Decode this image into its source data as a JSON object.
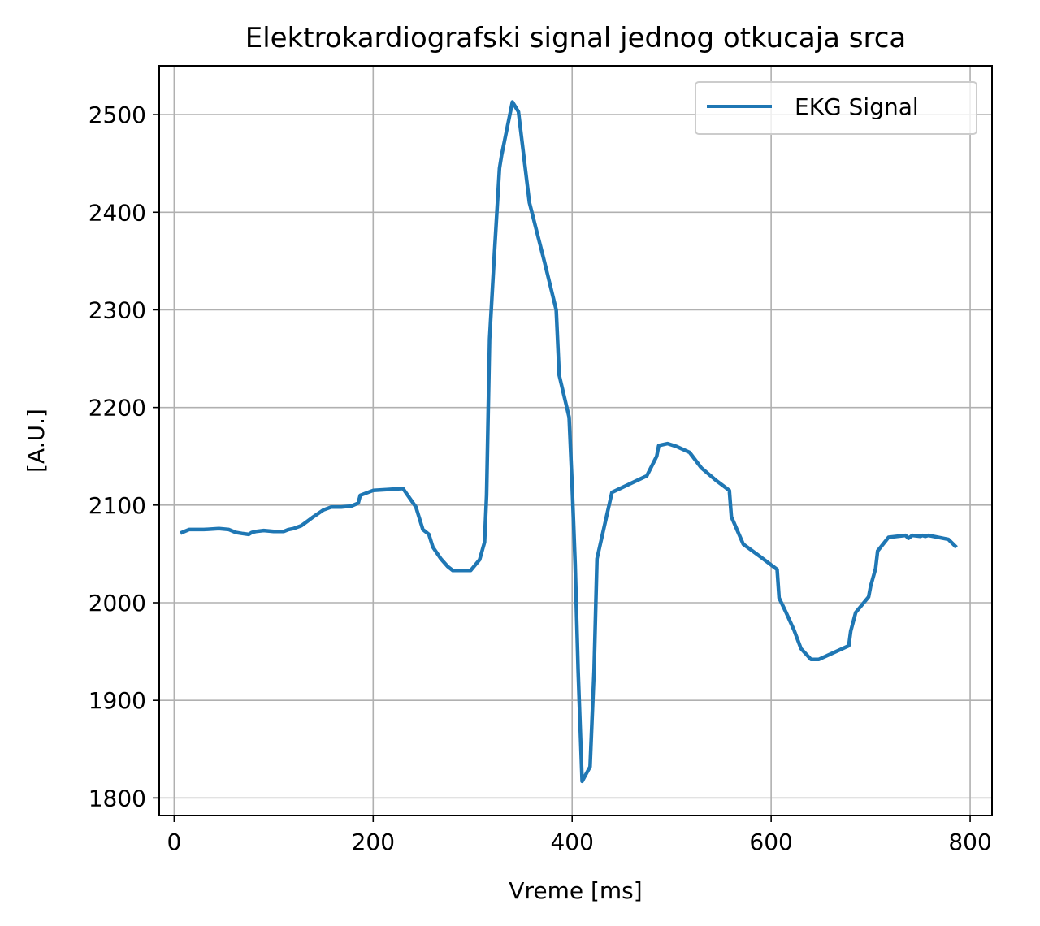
{
  "chart_data": {
    "type": "line",
    "title": "Elektrokardiografski signal jednog otkucaja srca",
    "xlabel": "Vreme [ms]",
    "ylabel": "[A.U.]",
    "xlim": [
      -15,
      822
    ],
    "ylim": [
      1782,
      2550
    ],
    "xticks": [
      0,
      200,
      400,
      600,
      800
    ],
    "yticks": [
      1800,
      1900,
      2000,
      2100,
      2200,
      2300,
      2400,
      2500
    ],
    "grid": true,
    "legend_position": "top-right",
    "series": [
      {
        "name": "EKG Signal",
        "color": "#1f77b4",
        "x": [
          8,
          15,
          30,
          45,
          55,
          62,
          68,
          75,
          78,
          82,
          90,
          100,
          110,
          115,
          120,
          128,
          140,
          150,
          158,
          168,
          178,
          185,
          187,
          200,
          215,
          230,
          243,
          250,
          256,
          260,
          268,
          275,
          280,
          298,
          307,
          312,
          314,
          317,
          322,
          327,
          329,
          340,
          346,
          357,
          372,
          384,
          387,
          397,
          400,
          403,
          406,
          410,
          418,
          422,
          425,
          440,
          475,
          485,
          487,
          496,
          505,
          518,
          530,
          545,
          558,
          560,
          572,
          588,
          606,
          608,
          615,
          623,
          630,
          640,
          648,
          678,
          680,
          685,
          698,
          700,
          705,
          707,
          718,
          735,
          738,
          742,
          750,
          752,
          755,
          758,
          778,
          785
        ],
        "y": [
          2072,
          2075,
          2075,
          2076,
          2075,
          2072,
          2071,
          2070,
          2072,
          2073,
          2074,
          2073,
          2073,
          2075,
          2076,
          2079,
          2088,
          2095,
          2098,
          2098,
          2099,
          2102,
          2110,
          2115,
          2116,
          2117,
          2098,
          2075,
          2070,
          2057,
          2045,
          2037,
          2033,
          2033,
          2044,
          2062,
          2110,
          2270,
          2360,
          2445,
          2458,
          2513,
          2503,
          2410,
          2350,
          2300,
          2233,
          2190,
          2120,
          2040,
          1930,
          1817,
          1832,
          1930,
          2045,
          2113,
          2130,
          2150,
          2161,
          2163,
          2160,
          2154,
          2138,
          2125,
          2115,
          2088,
          2060,
          2048,
          2034,
          2005,
          1990,
          1972,
          1953,
          1942,
          1942,
          1956,
          1971,
          1990,
          2006,
          2017,
          2035,
          2053,
          2067,
          2069,
          2066,
          2069,
          2068,
          2069,
          2068,
          2069,
          2065,
          2058
        ]
      }
    ]
  }
}
